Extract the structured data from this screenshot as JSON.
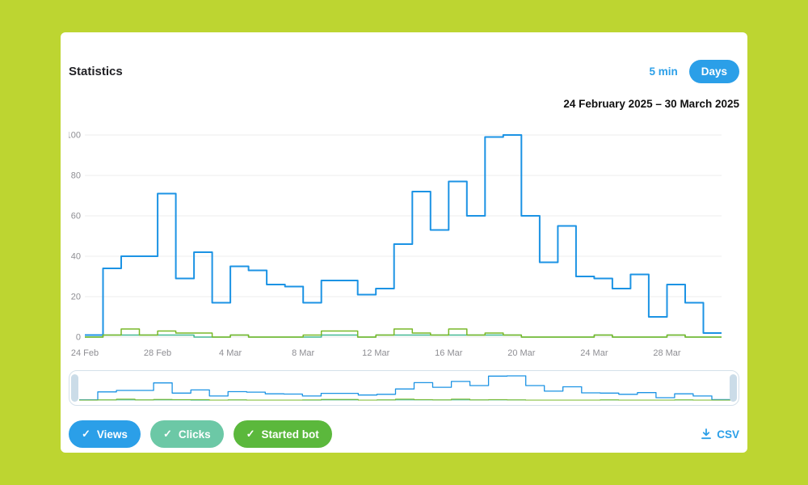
{
  "colors": {
    "page_background": "#bdd531",
    "accent_blue": "#2b9fe8",
    "axis_text": "#8e8e93",
    "gridline": "#ececec"
  },
  "header": {
    "title": "Statistics",
    "range_buttons": [
      {
        "label": "5 min",
        "active": false
      },
      {
        "label": "Days",
        "active": true
      }
    ],
    "date_range": "24 February 2025 – 30 March 2025"
  },
  "chart_data": {
    "type": "line",
    "subtype": "step",
    "title": "",
    "xlabel": "",
    "ylabel": "",
    "ylim": [
      0,
      100
    ],
    "grid": true,
    "legend_position": "bottom",
    "x": [
      "24 Feb",
      "25 Feb",
      "26 Feb",
      "27 Feb",
      "28 Feb",
      "1 Mar",
      "2 Mar",
      "3 Mar",
      "4 Mar",
      "5 Mar",
      "6 Mar",
      "7 Mar",
      "8 Mar",
      "9 Mar",
      "10 Mar",
      "11 Mar",
      "12 Mar",
      "13 Mar",
      "14 Mar",
      "15 Mar",
      "16 Mar",
      "17 Mar",
      "18 Mar",
      "19 Mar",
      "20 Mar",
      "21 Mar",
      "22 Mar",
      "23 Mar",
      "24 Mar",
      "25 Mar",
      "26 Mar",
      "27 Mar",
      "28 Mar",
      "29 Mar",
      "30 Mar"
    ],
    "xticks": [
      {
        "index": 0,
        "label": "24 Feb"
      },
      {
        "index": 4,
        "label": "28 Feb"
      },
      {
        "index": 8,
        "label": "4 Mar"
      },
      {
        "index": 12,
        "label": "8 Mar"
      },
      {
        "index": 16,
        "label": "12 Mar"
      },
      {
        "index": 20,
        "label": "16 Mar"
      },
      {
        "index": 24,
        "label": "20 Mar"
      },
      {
        "index": 28,
        "label": "24 Mar"
      },
      {
        "index": 32,
        "label": "28 Mar"
      }
    ],
    "yticks": [
      0,
      20,
      40,
      60,
      80,
      100
    ],
    "series": [
      {
        "name": "Views",
        "color": "#1c93e4",
        "values": [
          1,
          34,
          40,
          40,
          71,
          29,
          42,
          17,
          35,
          33,
          26,
          25,
          17,
          28,
          28,
          21,
          24,
          46,
          72,
          53,
          77,
          60,
          99,
          100,
          60,
          37,
          55,
          30,
          29,
          24,
          31,
          10,
          26,
          17,
          2
        ]
      },
      {
        "name": "Clicks",
        "color": "#43b893",
        "values": [
          0,
          1,
          1,
          1,
          1,
          1,
          0,
          0,
          1,
          0,
          0,
          0,
          0,
          1,
          1,
          0,
          1,
          1,
          1,
          1,
          1,
          1,
          1,
          1,
          0,
          0,
          0,
          0,
          1,
          0,
          0,
          0,
          1,
          0,
          0
        ]
      },
      {
        "name": "Started bot",
        "color": "#79b928",
        "values": [
          0,
          1,
          4,
          1,
          3,
          2,
          2,
          0,
          1,
          0,
          0,
          0,
          1,
          3,
          3,
          0,
          1,
          4,
          2,
          1,
          4,
          1,
          2,
          1,
          0,
          0,
          0,
          0,
          1,
          0,
          0,
          0,
          1,
          0,
          0
        ]
      }
    ]
  },
  "legend": [
    {
      "label": "Views",
      "color": "#2b9fe8",
      "check": "✓",
      "enabled": true
    },
    {
      "label": "Clicks",
      "color": "#6cc8a6",
      "check": "✓",
      "enabled": true
    },
    {
      "label": "Started bot",
      "color": "#5bb83c",
      "check": "✓",
      "enabled": true
    }
  ],
  "footer": {
    "csv_label": "CSV"
  }
}
